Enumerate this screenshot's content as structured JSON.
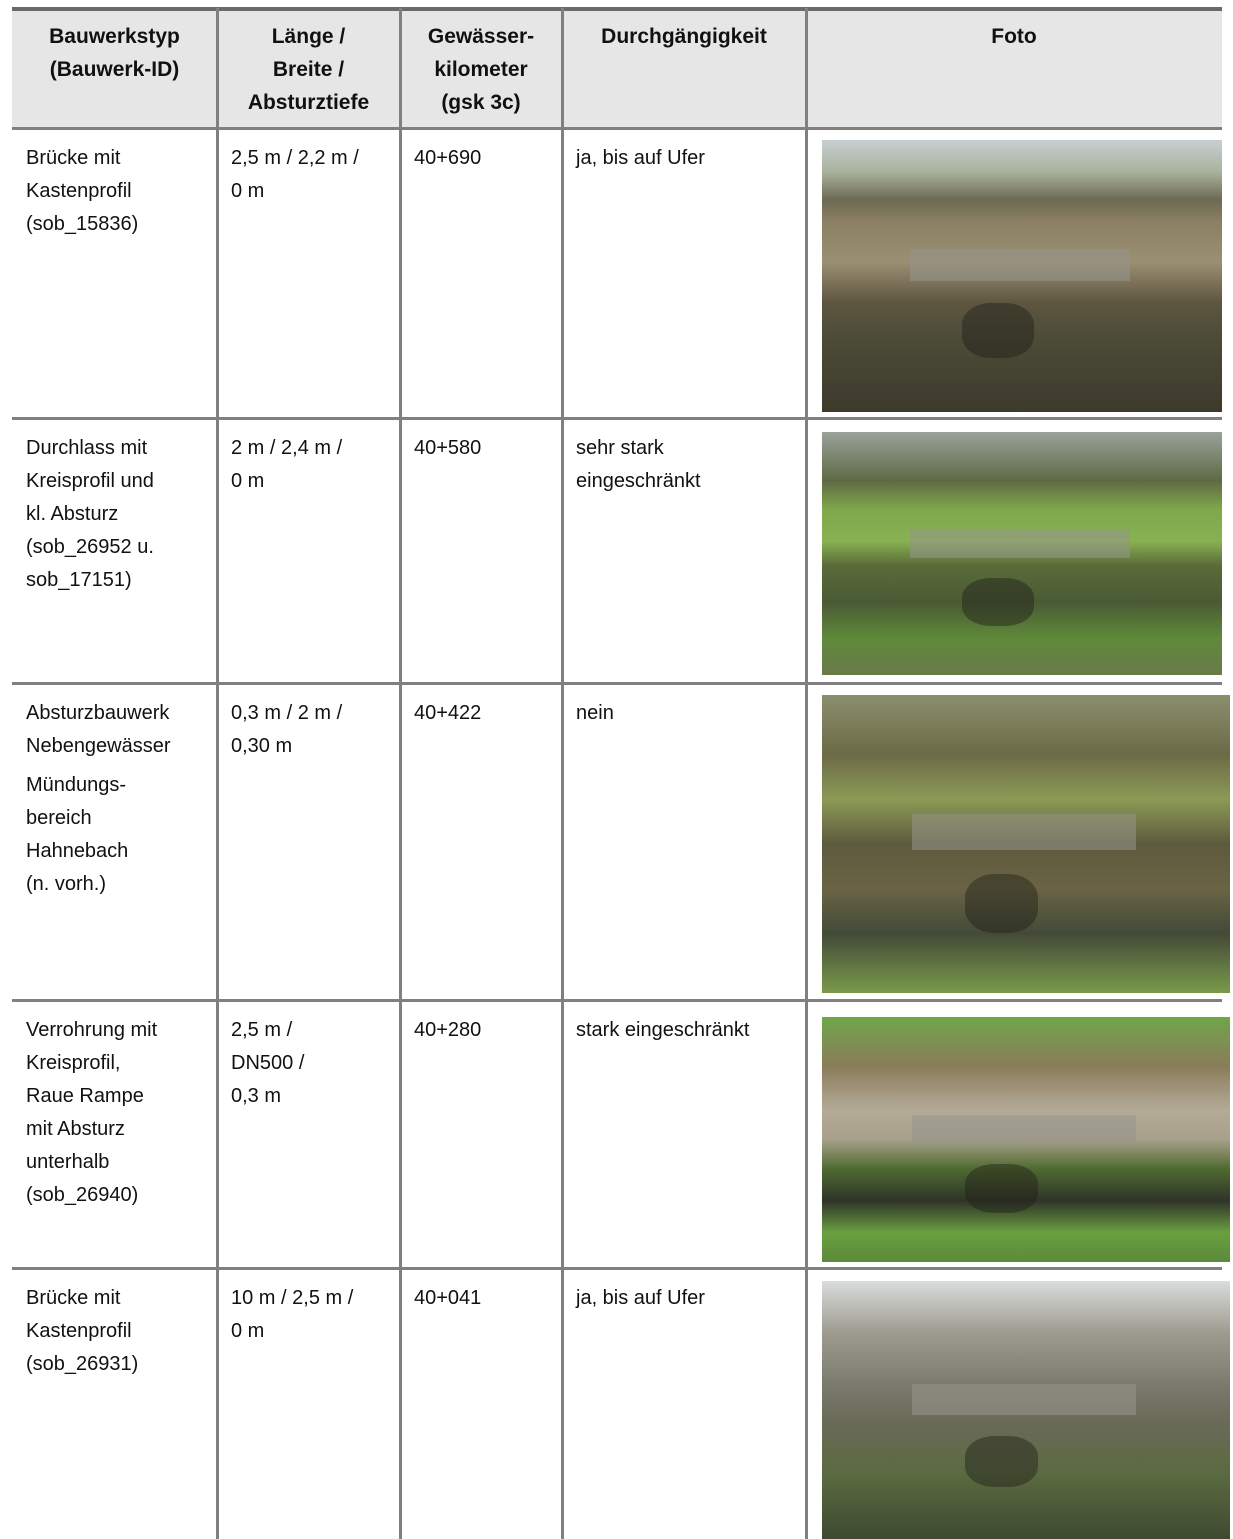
{
  "table": {
    "header": [
      [
        "Bauwerkstyp",
        "(Bauwerk-ID)"
      ],
      [
        "Länge /",
        "Breite /",
        "Absturztiefe"
      ],
      [
        "Gewässer-",
        "kilometer",
        "(gsk 3c)"
      ],
      [
        "Durchgängigkeit"
      ],
      [
        "Foto"
      ]
    ],
    "rows": [
      [
        [
          "Brücke mit",
          "Kastenprofil",
          "(sob_15836)"
        ],
        [
          "2,5 m / 2,2 m /",
          "0 m"
        ],
        [
          "40+690"
        ],
        [
          "ja, bis auf Ufer"
        ]
      ],
      [
        [
          "Durchlass mit",
          "Kreisprofil und",
          "kl. Absturz",
          "(sob_26952 u.",
          "sob_17151)"
        ],
        [
          "2 m / 2,4 m /",
          "0 m"
        ],
        [
          "40+580"
        ],
        [
          "sehr stark",
          "eingeschränkt"
        ]
      ],
      [
        [
          "Absturzbauwerk",
          "Nebengewässer",
          "Mündungs-",
          "bereich",
          "Hahnebach",
          "(n. vorh.)"
        ],
        [
          "0,3 m / 2 m /",
          "0,30 m"
        ],
        [
          "40+422"
        ],
        [
          "nein"
        ]
      ],
      [
        [
          "Verrohrung mit",
          "Kreisprofil,",
          "Raue Rampe",
          "mit Absturz",
          "unterhalb",
          "(sob_26940)"
        ],
        [
          "2,5 m /",
          "DN500 /",
          "0,3 m"
        ],
        [
          "40+280"
        ],
        [
          "stark eingeschränkt"
        ]
      ],
      [
        [
          "Brücke mit",
          "Kastenprofil",
          "(sob_26931)"
        ],
        [
          "10 m / 2,5 m /",
          "0 m"
        ],
        [
          "40+041"
        ],
        [
          "ja, bis auf Ufer"
        ]
      ]
    ]
  }
}
